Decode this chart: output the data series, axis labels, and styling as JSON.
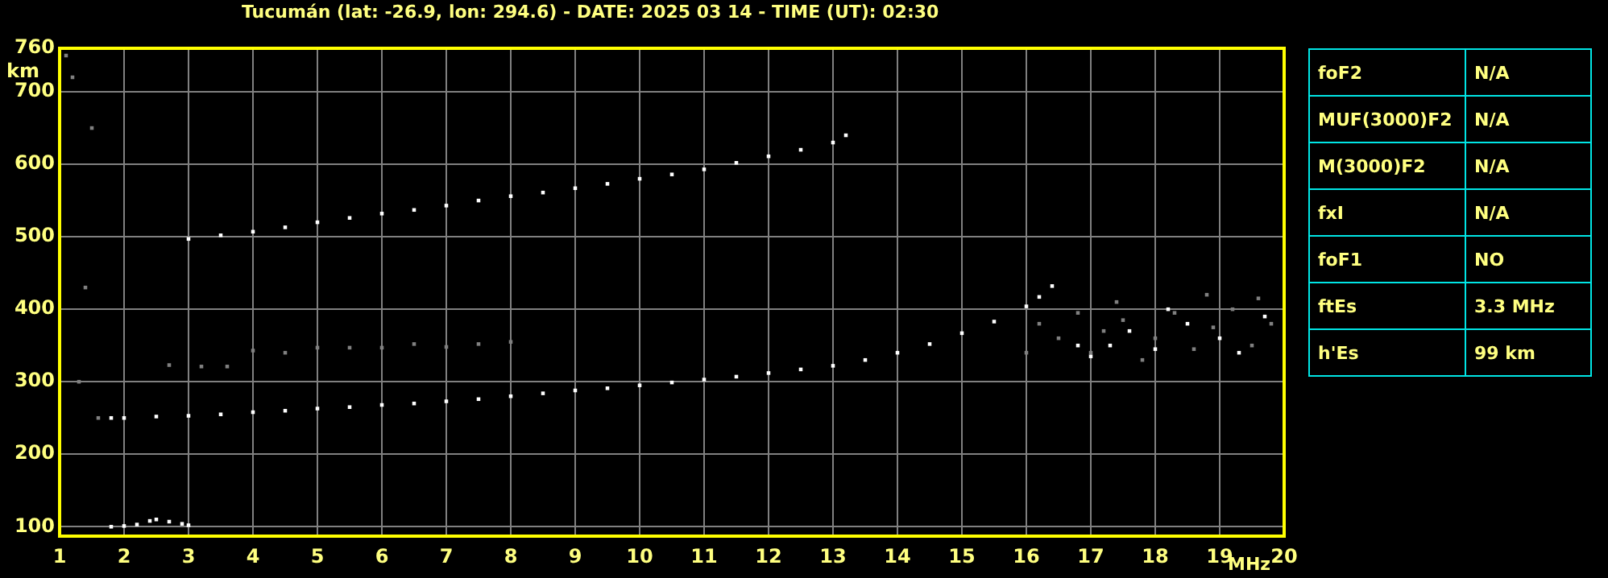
{
  "chart_data": {
    "type": "scatter",
    "title": "Tucumán (lat: -26.9, lon: 294.6) - DATE: 2025 03 14 - TIME (UT): 02:30",
    "xlabel": "MHz",
    "ylabel": "km",
    "xlim": [
      1,
      20
    ],
    "xticks": [
      1,
      2,
      3,
      4,
      5,
      6,
      7,
      8,
      9,
      10,
      11,
      12,
      13,
      14,
      15,
      16,
      17,
      18,
      19,
      20
    ],
    "ylim": [
      87,
      760
    ],
    "yticks": [
      100,
      200,
      300,
      400,
      500,
      600,
      700,
      760
    ],
    "grid": true,
    "legend": false,
    "marker": "square",
    "annotations": [
      "foF2",
      "N/A",
      "MUF(3000)F2",
      "N/A",
      "M(3000)F2",
      "N/A",
      "fxI",
      "N/A",
      "foF1",
      "NO",
      "ftEs",
      "3.3 MHz",
      "h'Es",
      "99 km"
    ],
    "series": [
      {
        "color": "#ffffff",
        "x": [
          1.8,
          2,
          2.5,
          3,
          3.5,
          4,
          4.5,
          5,
          5.5,
          6,
          6.5,
          7,
          7.5,
          8,
          8.5,
          9,
          9.5,
          10,
          10.5,
          11,
          11.5,
          12,
          12.5,
          13,
          13.5,
          14,
          14.5,
          15,
          15.5,
          16,
          16.2,
          16.4
        ],
        "values": [
          250,
          250,
          252,
          253,
          255,
          258,
          260,
          263,
          265,
          268,
          270,
          273,
          276,
          280,
          284,
          288,
          291,
          295,
          299,
          303,
          307,
          312,
          317,
          322,
          330,
          340,
          352,
          367,
          383,
          404,
          417,
          432
        ]
      },
      {
        "color": "#ffffff",
        "x": [
          3,
          3.5,
          4,
          4.5,
          5,
          5.5,
          6,
          6.5,
          7,
          7.5,
          8,
          8.5,
          9,
          9.5,
          10,
          10.5,
          11,
          11.5,
          12,
          12.5,
          13,
          13.2
        ],
        "values": [
          497,
          502,
          507,
          513,
          520,
          526,
          532,
          537,
          543,
          550,
          556,
          561,
          567,
          573,
          580,
          586,
          593,
          602,
          611,
          620,
          630,
          640
        ]
      },
      {
        "color": "#ffffff",
        "x": [
          1.8,
          2,
          2.2,
          2.4,
          2.5,
          2.7,
          2.9,
          3
        ],
        "values": [
          100,
          101,
          103,
          108,
          110,
          107,
          104,
          102
        ]
      },
      {
        "color": "#808080",
        "x": [
          2.7,
          3.2,
          3.6,
          4,
          4.5,
          5,
          5.5,
          6,
          6.5,
          7,
          7.5,
          8,
          16.2,
          16.5,
          16.8,
          17,
          17.2,
          17.5,
          17.8,
          18,
          18.3,
          18.6,
          18.9,
          19.2,
          19.5,
          19.8,
          16,
          17.4,
          18.8,
          19.6,
          1.1,
          1.2,
          1.5,
          1.4,
          1.3,
          1.6
        ],
        "values": [
          323,
          321,
          321,
          343,
          340,
          347,
          347,
          347,
          352,
          348,
          352,
          355,
          380,
          360,
          395,
          340,
          370,
          385,
          330,
          360,
          395,
          345,
          375,
          400,
          350,
          380,
          340,
          410,
          420,
          415,
          750,
          720,
          650,
          430,
          300,
          250
        ]
      },
      {
        "color": "#ffffff",
        "x": [
          17,
          17.3,
          18,
          18.5,
          19,
          19.7,
          16.8,
          18.2,
          17.6,
          19.3
        ],
        "values": [
          335,
          350,
          345,
          380,
          360,
          390,
          350,
          400,
          370,
          340
        ]
      }
    ]
  }
}
